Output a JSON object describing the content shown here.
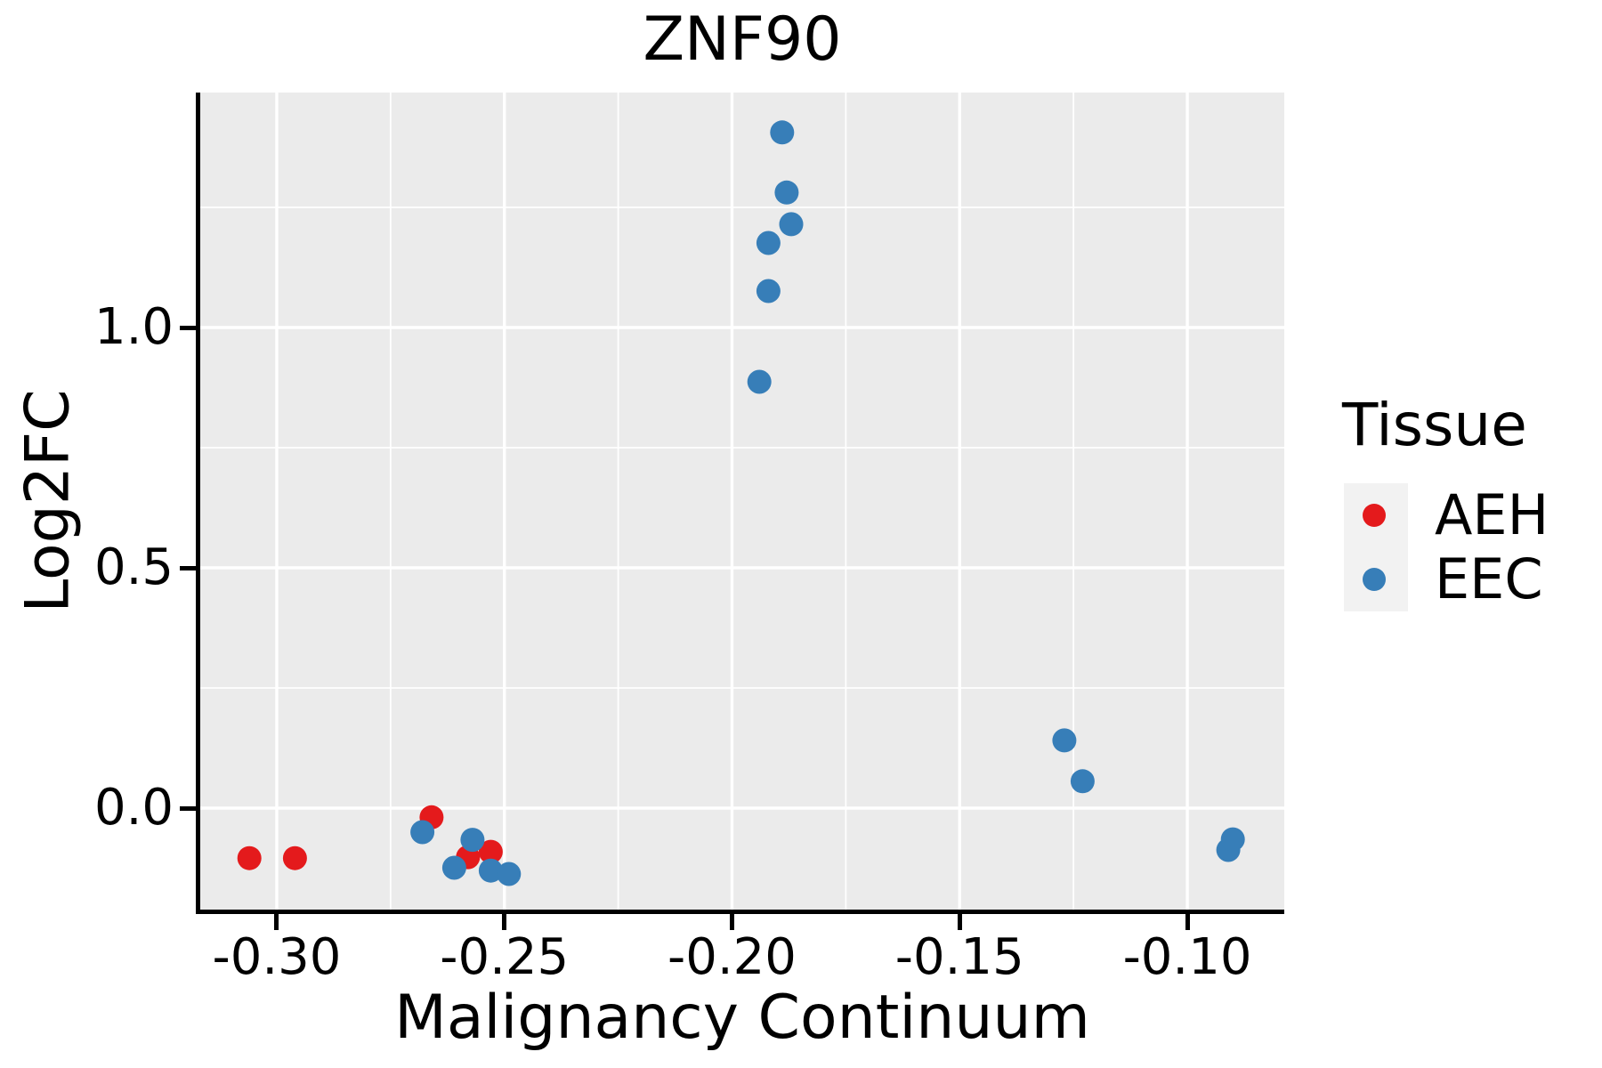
{
  "title": "ZNF90",
  "axes": {
    "x": {
      "label": "Malignancy Continuum",
      "tick_labels": [
        "-0.30",
        "-0.25",
        "-0.20",
        "-0.15",
        "-0.10"
      ]
    },
    "y": {
      "label": "Log2FC",
      "tick_labels": [
        "0.0",
        "0.5",
        "1.0"
      ]
    }
  },
  "legend": {
    "title": "Tissue",
    "items": [
      {
        "label": "AEH",
        "color": "#E41A1C"
      },
      {
        "label": "EEC",
        "color": "#377EB8"
      }
    ]
  },
  "style": {
    "panel_background": "#EBEBEB",
    "gridline_color": "#FFFFFF",
    "axis_line_color": "#000000",
    "text_color": "#000000",
    "point_radius": 13.5
  },
  "chart_data": {
    "type": "scatter",
    "title": "ZNF90",
    "xlabel": "Malignancy Continuum",
    "ylabel": "Log2FC",
    "xlim": [
      -0.3168,
      -0.0787
    ],
    "ylim": [
      -0.2111,
      1.4889
    ],
    "x_major_ticks": [
      -0.3,
      -0.25,
      -0.2,
      -0.15,
      -0.1
    ],
    "x_minor_ticks": [
      -0.275,
      -0.225,
      -0.175,
      -0.125
    ],
    "y_major_ticks": [
      0.0,
      0.5,
      1.0
    ],
    "y_minor_ticks": [
      0.25,
      0.75,
      1.25
    ],
    "grid": true,
    "legend_position": "right",
    "series": [
      {
        "name": "AEH",
        "color": "#E41A1C",
        "points": [
          [
            -0.306,
            -0.104
          ],
          [
            -0.296,
            -0.104
          ],
          [
            -0.266,
            -0.019
          ],
          [
            -0.258,
            -0.102
          ],
          [
            -0.253,
            -0.091
          ]
        ]
      },
      {
        "name": "EEC",
        "color": "#377EB8",
        "points": [
          [
            -0.189,
            1.406
          ],
          [
            -0.188,
            1.281
          ],
          [
            -0.187,
            1.215
          ],
          [
            -0.192,
            1.176
          ],
          [
            -0.192,
            1.076
          ],
          [
            -0.194,
            0.887
          ],
          [
            -0.268,
            -0.05
          ],
          [
            -0.257,
            -0.066
          ],
          [
            -0.261,
            -0.124
          ],
          [
            -0.253,
            -0.13
          ],
          [
            -0.249,
            -0.137
          ],
          [
            -0.127,
            0.141
          ],
          [
            -0.123,
            0.056
          ],
          [
            -0.091,
            -0.087
          ],
          [
            -0.09,
            -0.065
          ]
        ]
      }
    ]
  }
}
